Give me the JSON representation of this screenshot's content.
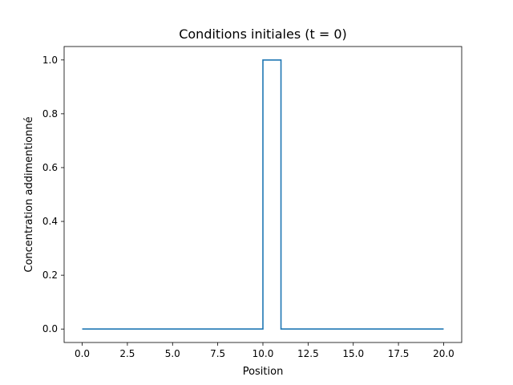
{
  "chart_data": {
    "type": "line",
    "title": "Conditions initiales (t = 0)",
    "xlabel": "Position",
    "ylabel": "Concentration addimentionné",
    "xlim": [
      -1,
      21
    ],
    "ylim": [
      -0.05,
      1.05
    ],
    "xticks": [
      0,
      2.5,
      5,
      7.5,
      10,
      12.5,
      15,
      17.5,
      20
    ],
    "xtick_labels": [
      "0.0",
      "2.5",
      "5.0",
      "7.5",
      "10.0",
      "12.5",
      "15.0",
      "17.5",
      "20.0"
    ],
    "yticks": [
      0,
      0.2,
      0.4,
      0.6,
      0.8,
      1.0
    ],
    "ytick_labels": [
      "0.0",
      "0.2",
      "0.4",
      "0.6",
      "0.8",
      "1.0"
    ],
    "grid": false,
    "legend": "none",
    "series": [
      {
        "color": "#1f77b4",
        "x": [
          0,
          10,
          10,
          11,
          11,
          20
        ],
        "y": [
          0,
          0,
          1,
          1,
          0,
          0
        ]
      }
    ]
  }
}
